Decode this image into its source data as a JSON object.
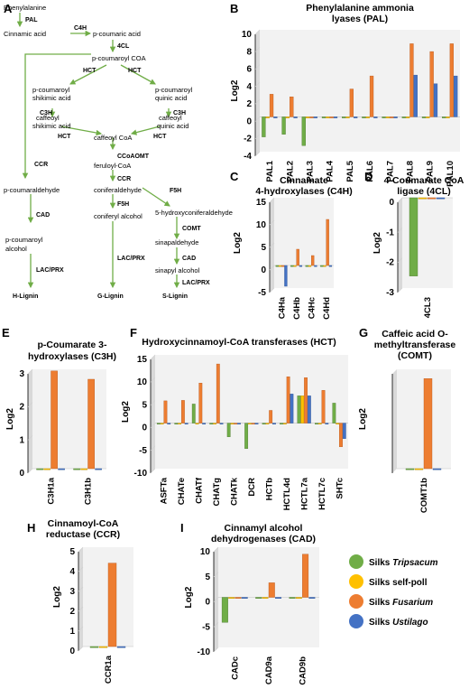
{
  "panel_labels": [
    "A",
    "B",
    "C",
    "D",
    "E",
    "F",
    "G",
    "H",
    "I"
  ],
  "pathway": {
    "nodes": [
      {
        "id": "phe",
        "text": "Phenylalanine"
      },
      {
        "id": "cin",
        "text": "Cinnamic acid"
      },
      {
        "id": "pcou",
        "text": "p-coumaric acid"
      },
      {
        "id": "pcoa",
        "text": "p-coumaroyl COA"
      },
      {
        "id": "pcsh1",
        "text": "p-coumaroyl"
      },
      {
        "id": "pcsh2",
        "text": "shikimic acid"
      },
      {
        "id": "pcqa1",
        "text": "p-coumaroyl"
      },
      {
        "id": "pcqa2",
        "text": "quinic acid"
      },
      {
        "id": "cfsh1",
        "text": "caffeoyl"
      },
      {
        "id": "cfsh2",
        "text": "shikimic acid"
      },
      {
        "id": "cfqa1",
        "text": "caffeoyl"
      },
      {
        "id": "cfqa2",
        "text": "quinic acid"
      },
      {
        "id": "cfcoa",
        "text": "caffeoyl CoA"
      },
      {
        "id": "fercoa",
        "text": "feruloyl-CoA"
      },
      {
        "id": "pcald",
        "text": "p-coumaraldehyde"
      },
      {
        "id": "conald",
        "text": "coniferaldehyde"
      },
      {
        "id": "hcald",
        "text": "5-hydroxyconiferaldehyde"
      },
      {
        "id": "pcalc1",
        "text": "p-coumaroyl"
      },
      {
        "id": "pcalc2",
        "text": "alcohol"
      },
      {
        "id": "conalc",
        "text": "coniferyl alcohol"
      },
      {
        "id": "sinald",
        "text": "sinapaldehyde"
      },
      {
        "id": "sinalc",
        "text": "sinapyl alcohol"
      },
      {
        "id": "hlig",
        "text": "H-Lignin"
      },
      {
        "id": "glig",
        "text": "G-Lignin"
      },
      {
        "id": "slig",
        "text": "S-Lignin"
      }
    ],
    "enzymes": [
      "PAL",
      "C4H",
      "4CL",
      "HCT",
      "HCT",
      "C3H",
      "C3H",
      "HCT",
      "HCT",
      "CCoAOMT",
      "CCR",
      "CCR",
      "F5H",
      "F5H",
      "COMT",
      "CAD",
      "CAD",
      "LAC/PRX",
      "LAC/PRX",
      "LAC/PRX"
    ]
  },
  "legend": {
    "items": [
      {
        "prefix": "Silks ",
        "name": "Tripsacum",
        "color": "#70ad47"
      },
      {
        "prefix": "Silks ",
        "name": "self-poll",
        "color": "#ffc000"
      },
      {
        "prefix": "Silks ",
        "name": "Fusarium",
        "color": "#ed7d31"
      },
      {
        "prefix": "Silks ",
        "name": "Ustilago",
        "color": "#4472c4"
      }
    ]
  },
  "chart_data": [
    {
      "panel": "B",
      "type": "bar",
      "title": [
        "Phenylalanine ammonia",
        "lyases (PAL)"
      ],
      "ylabel": "Log2",
      "ylim": [
        -4,
        10
      ],
      "yticks": [
        -4,
        -2,
        0,
        2,
        4,
        6,
        8,
        10
      ],
      "categories": [
        "PAL1",
        "PAL2",
        "PAL3",
        "PAL4",
        "PAL5",
        "PAL6",
        "PAL7",
        "PAL8",
        "PAL9",
        "PAL10"
      ],
      "series": [
        {
          "name": "Silks Tripsacum",
          "values": [
            -2.3,
            -2.0,
            -3.3,
            0,
            0,
            0,
            0,
            0,
            0,
            0
          ]
        },
        {
          "name": "Silks self-poll",
          "values": [
            0,
            0,
            0,
            0,
            0,
            0,
            0,
            0,
            0,
            0
          ]
        },
        {
          "name": "Silks Fusarium",
          "values": [
            2.6,
            2.3,
            0,
            0,
            3.2,
            4.7,
            0,
            8.4,
            7.5,
            8.4
          ]
        },
        {
          "name": "Silks Ustilago",
          "values": [
            0,
            0,
            0,
            0,
            0,
            0,
            0,
            4.8,
            3.8,
            4.7
          ]
        }
      ]
    },
    {
      "panel": "C",
      "type": "bar",
      "title": [
        "Cinnamate",
        "4-hydroxylases (C4H)"
      ],
      "ylabel": "Log2",
      "ylim": [
        -5,
        15
      ],
      "yticks": [
        -5,
        0,
        5,
        10,
        15
      ],
      "categories": [
        "C4Ha",
        "C4Hb",
        "C4Hc",
        "C4Hd"
      ],
      "series": [
        {
          "name": "Silks Tripsacum",
          "values": [
            0,
            0,
            0,
            0
          ]
        },
        {
          "name": "Silks self-poll",
          "values": [
            0,
            0,
            0,
            0
          ]
        },
        {
          "name": "Silks Fusarium",
          "values": [
            0,
            3.6,
            2.2,
            10.2
          ]
        },
        {
          "name": "Silks Ustilago",
          "values": [
            -4.6,
            0,
            0,
            0
          ]
        }
      ]
    },
    {
      "panel": "D",
      "type": "bar",
      "title": [
        "4-Coumarate CoA",
        "ligase (4CL)"
      ],
      "ylabel": "Log2",
      "ylim": [
        -3,
        0
      ],
      "yticks": [
        -3,
        -2,
        -1,
        0
      ],
      "categories": [
        "4CL3"
      ],
      "series": [
        {
          "name": "Silks Tripsacum",
          "values": [
            -2.6
          ]
        },
        {
          "name": "Silks self-poll",
          "values": [
            0
          ]
        },
        {
          "name": "Silks Fusarium",
          "values": [
            0
          ]
        },
        {
          "name": "Silks Ustilago",
          "values": [
            0
          ]
        }
      ]
    },
    {
      "panel": "E",
      "type": "bar",
      "title": [
        "p-Coumarate 3-",
        "hydroxylases (C3H)"
      ],
      "ylabel": "Log2",
      "ylim": [
        0,
        3
      ],
      "yticks": [
        0,
        1,
        2,
        3
      ],
      "categories": [
        "C3H1a",
        "C3H1b"
      ],
      "series": [
        {
          "name": "Silks Tripsacum",
          "values": [
            0,
            0
          ]
        },
        {
          "name": "Silks self-poll",
          "values": [
            0,
            0
          ]
        },
        {
          "name": "Silks Fusarium",
          "values": [
            2.95,
            2.7
          ]
        },
        {
          "name": "Silks Ustilago",
          "values": [
            0,
            0
          ]
        }
      ]
    },
    {
      "panel": "F",
      "type": "bar",
      "title": [
        "Hydroxycinnamoyl-CoA transferases (HCT)"
      ],
      "ylabel": "Log2",
      "ylim": [
        -10,
        15
      ],
      "yticks": [
        -10,
        -5,
        0,
        5,
        10,
        15
      ],
      "categories": [
        "ASFTa",
        "CHATe",
        "CHATf",
        "CHATg",
        "CHATk",
        "DCR",
        "HCTb",
        "HCTL4d",
        "HCTL7a",
        "HCTL7c",
        "SHTc"
      ],
      "series": [
        {
          "name": "Silks Tripsacum",
          "values": [
            0,
            0,
            4.2,
            0,
            -3.0,
            -5.6,
            0,
            0,
            6.0,
            0,
            4.4
          ]
        },
        {
          "name": "Silks self-poll",
          "values": [
            0,
            0,
            0,
            0,
            0,
            0,
            0,
            0,
            6.0,
            0,
            0
          ]
        },
        {
          "name": "Silks Fusarium",
          "values": [
            4.9,
            5.0,
            8.8,
            13.0,
            0,
            0,
            2.8,
            10.2,
            10.0,
            7.2,
            -5.2
          ]
        },
        {
          "name": "Silks Ustilago",
          "values": [
            0,
            0,
            0,
            0,
            0,
            0,
            0,
            6.4,
            6.0,
            0,
            -3.4
          ]
        }
      ]
    },
    {
      "panel": "G",
      "type": "bar",
      "title": [
        "Caffeic acid O-",
        "methyltransferase",
        "(COMT)"
      ],
      "ylabel": "Log2",
      "ylim": [
        0,
        15
      ],
      "yticks": [],
      "categories": [
        "COMT1b"
      ],
      "series": [
        {
          "name": "Silks Tripsacum",
          "values": [
            0
          ]
        },
        {
          "name": "Silks self-poll",
          "values": [
            0
          ]
        },
        {
          "name": "Silks Fusarium",
          "values": [
            13.6
          ]
        },
        {
          "name": "Silks Ustilago",
          "values": [
            0
          ]
        }
      ]
    },
    {
      "panel": "H",
      "type": "bar",
      "title": [
        "Cinnamoyl-CoA",
        "reductase (CCR)"
      ],
      "ylabel": "Log2",
      "ylim": [
        0,
        5
      ],
      "yticks": [
        0,
        1,
        2,
        3,
        4,
        5
      ],
      "categories": [
        "CCR1a"
      ],
      "series": [
        {
          "name": "Silks Tripsacum",
          "values": [
            0
          ]
        },
        {
          "name": "Silks self-poll",
          "values": [
            0
          ]
        },
        {
          "name": "Silks Fusarium",
          "values": [
            4.2
          ]
        },
        {
          "name": "Silks Ustilago",
          "values": [
            0
          ]
        }
      ]
    },
    {
      "panel": "I",
      "type": "bar",
      "title": [
        "Cinnamyl alcohol",
        "dehydrogenases (CAD)"
      ],
      "ylabel": "Log2",
      "ylim": [
        -10,
        10
      ],
      "yticks": [
        -10,
        -5,
        0,
        5,
        10
      ],
      "categories": [
        "CADc",
        "CAD9a",
        "CAD9b"
      ],
      "series": [
        {
          "name": "Silks Tripsacum",
          "values": [
            -5.0,
            0,
            0
          ]
        },
        {
          "name": "Silks self-poll",
          "values": [
            0,
            0,
            0
          ]
        },
        {
          "name": "Silks Fusarium",
          "values": [
            0,
            2.9,
            8.6
          ]
        },
        {
          "name": "Silks Ustilago",
          "values": [
            0,
            0,
            0
          ]
        }
      ]
    }
  ]
}
